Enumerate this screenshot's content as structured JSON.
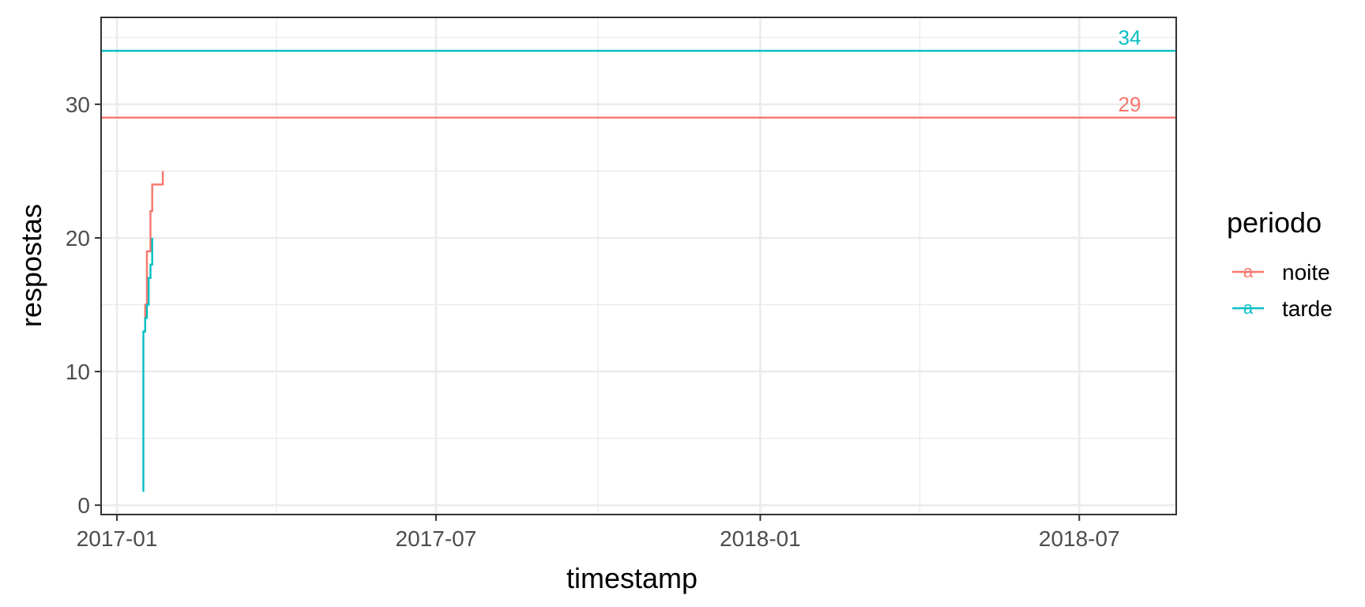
{
  "chart_data": {
    "type": "line",
    "xlabel": "timestamp",
    "ylabel": "respostas",
    "x_ticks": [
      "2017-01",
      "2017-07",
      "2018-01",
      "2018-07"
    ],
    "y_ticks": [
      0,
      10,
      20,
      30
    ],
    "xlim": [
      "2016-12-23",
      "2018-08-25"
    ],
    "ylim": [
      -0.7,
      36.5
    ],
    "grid": true,
    "legend": {
      "title": "periodo",
      "placement": "right",
      "glyph": "a",
      "entries": [
        "noite",
        "tarde"
      ]
    },
    "series": [
      {
        "name": "noite",
        "color": "#F8766D",
        "step": true,
        "points": [
          [
            "2017-01-16",
            13
          ],
          [
            "2017-01-17",
            15
          ],
          [
            "2017-01-18",
            19
          ],
          [
            "2017-01-19",
            19
          ],
          [
            "2017-01-20",
            22
          ],
          [
            "2017-01-21",
            24
          ],
          [
            "2017-01-22",
            24
          ],
          [
            "2017-01-24",
            24
          ],
          [
            "2017-01-26",
            24
          ],
          [
            "2017-01-27",
            25
          ]
        ]
      },
      {
        "name": "tarde",
        "color": "#00BFC4",
        "step": true,
        "points": [
          [
            "2017-01-16",
            1
          ],
          [
            "2017-01-16",
            13
          ],
          [
            "2017-01-17",
            14
          ],
          [
            "2017-01-18",
            15
          ],
          [
            "2017-01-19",
            17
          ],
          [
            "2017-01-20",
            18
          ],
          [
            "2017-01-21",
            20
          ]
        ]
      }
    ],
    "reference_lines": [
      {
        "series": "tarde",
        "value": 34,
        "label": "34",
        "color": "#00BFC4"
      },
      {
        "series": "noite",
        "value": 29,
        "label": "29",
        "color": "#F8766D"
      }
    ]
  }
}
